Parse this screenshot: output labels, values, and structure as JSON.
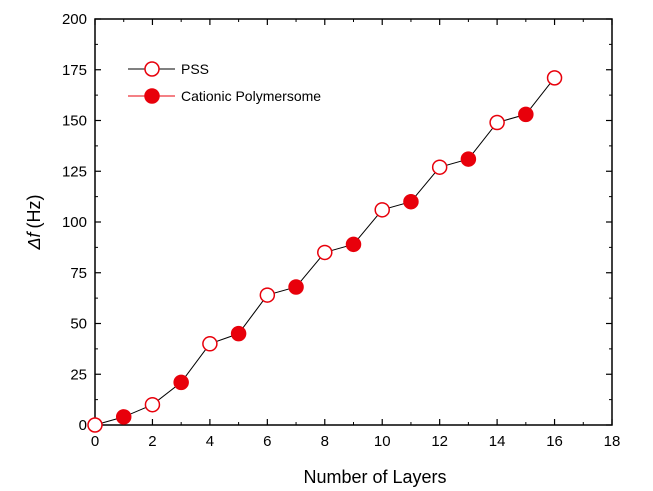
{
  "chart_data": {
    "type": "line",
    "xlabel": "Number of Layers",
    "ylabel_symbol": "Δf",
    "ylabel_unit": "(Hz)",
    "xlim": [
      0,
      18
    ],
    "ylim": [
      0,
      200
    ],
    "xticks": [
      "0",
      "2",
      "4",
      "6",
      "8",
      "10",
      "12",
      "14",
      "16",
      "18"
    ],
    "yticks": [
      "0",
      "25",
      "50",
      "75",
      "100",
      "125",
      "150",
      "175",
      "200"
    ],
    "grid": false,
    "legend_position": "top-left",
    "line_color": "#000000",
    "marker_color": "#e8000b",
    "line_x": [
      0,
      1,
      2,
      3,
      4,
      5,
      6,
      7,
      8,
      9,
      10,
      11,
      12,
      13,
      14,
      15,
      16
    ],
    "line_y": [
      0,
      4,
      10,
      21,
      40,
      45,
      64,
      68,
      85,
      89,
      106,
      110,
      127,
      131,
      149,
      153,
      171
    ],
    "series": [
      {
        "name": "PSS",
        "marker": "open-circle",
        "x": [
          0,
          2,
          4,
          6,
          8,
          10,
          12,
          14,
          16
        ],
        "y": [
          0,
          10,
          40,
          64,
          85,
          106,
          127,
          149,
          171
        ]
      },
      {
        "name": "Cationic Polymersome",
        "marker": "filled-circle",
        "x": [
          1,
          3,
          5,
          7,
          9,
          11,
          13,
          15
        ],
        "y": [
          4,
          21,
          45,
          68,
          89,
          110,
          131,
          153
        ]
      }
    ]
  }
}
